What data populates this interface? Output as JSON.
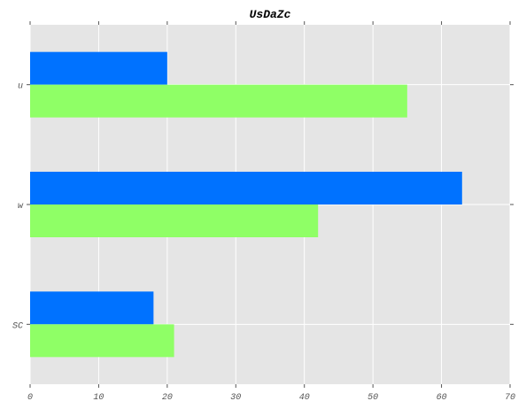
{
  "chart_data": {
    "type": "bar",
    "orientation": "horizontal",
    "title": "UsDaZc",
    "xlabel": "",
    "ylabel": "",
    "categories": [
      "u",
      "w",
      "SC"
    ],
    "series": [
      {
        "color": "#0072ff",
        "values": [
          20,
          63,
          18
        ]
      },
      {
        "color": "#8fff66",
        "values": [
          55,
          42,
          21
        ]
      }
    ],
    "xlim": [
      0,
      70
    ],
    "xticks": [
      0,
      10,
      20,
      30,
      40,
      50,
      60,
      70
    ],
    "grid": true,
    "legend": "none",
    "background": "#e5e5e5"
  }
}
